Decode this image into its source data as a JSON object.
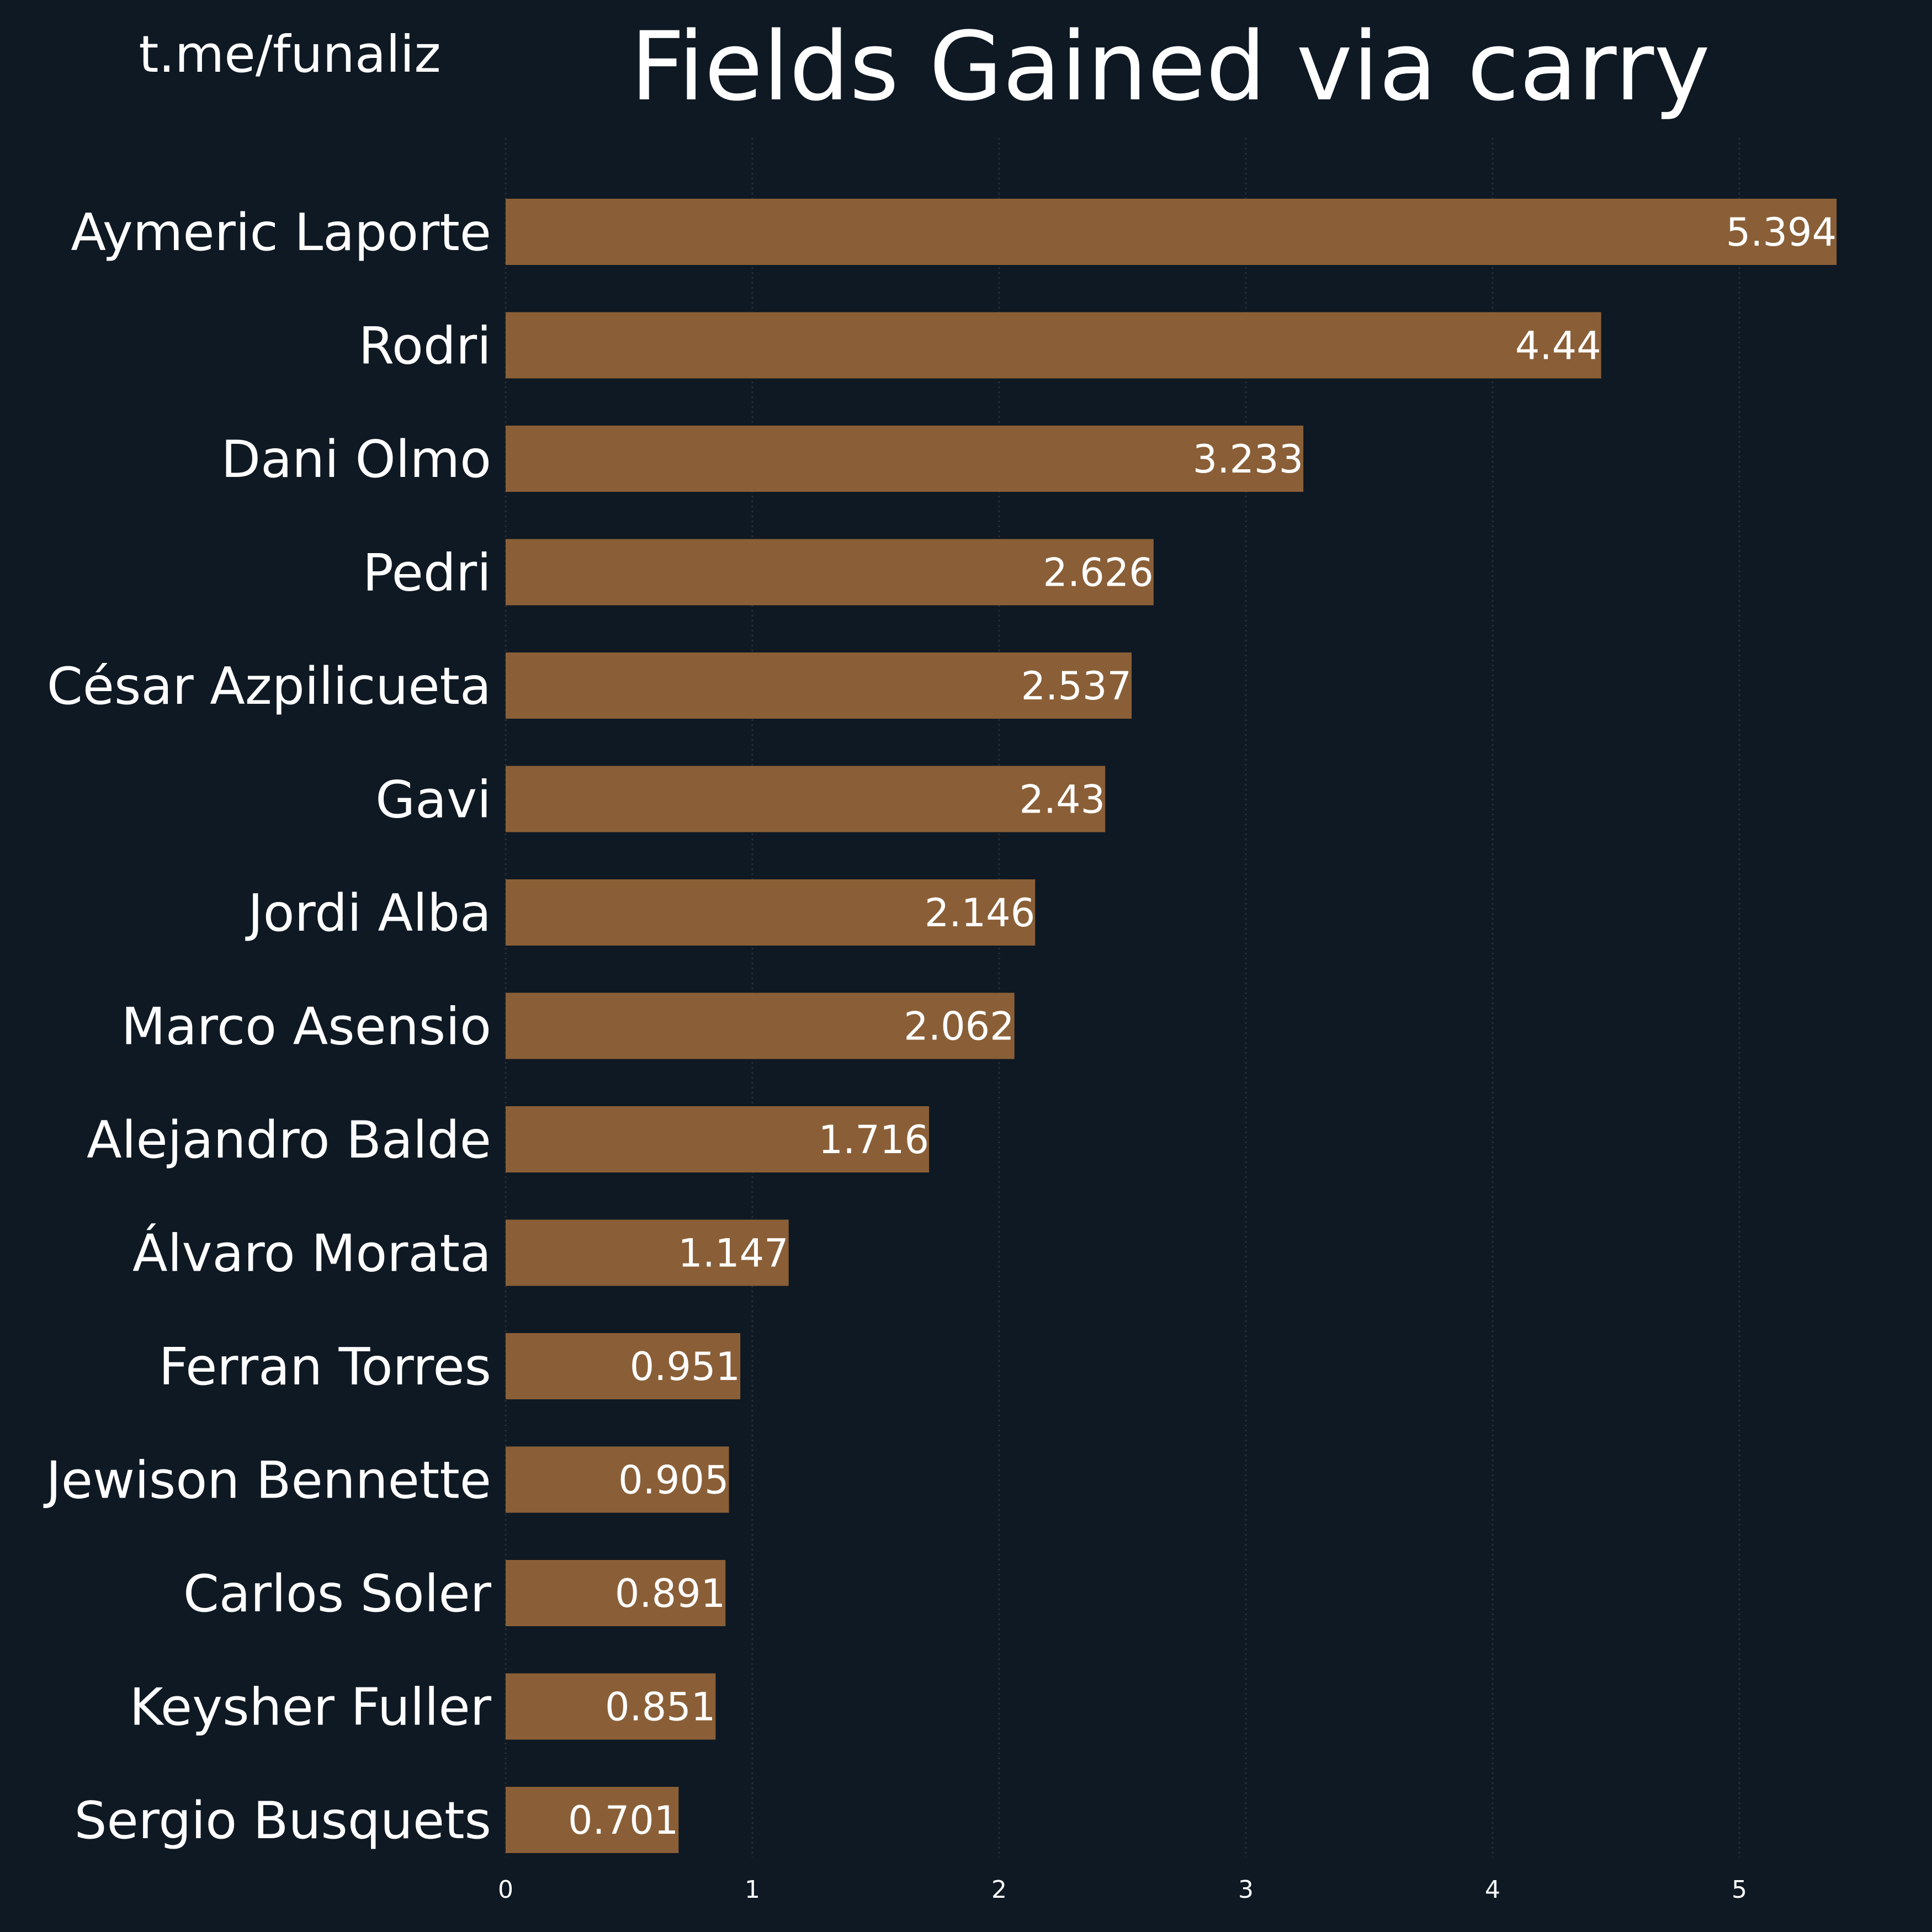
{
  "header": {
    "watermark": "t.me/funaliz",
    "title": "Fields Gained via carry"
  },
  "colors": {
    "background": "#0f1923",
    "bar": "#8a5f37",
    "text": "#ffffff",
    "grid": "#27303a"
  },
  "chart_data": {
    "type": "bar",
    "orientation": "horizontal",
    "title": "Fields Gained via carry",
    "xlabel": "",
    "ylabel": "",
    "xlim": [
      0,
      5.5
    ],
    "x_ticks": [
      0,
      1,
      2,
      3,
      4,
      5
    ],
    "grid": "vertical, dotted",
    "categories": [
      "Aymeric Laporte",
      "Rodri",
      "Dani Olmo",
      "Pedri",
      "César Azpilicueta",
      "Gavi",
      "Jordi Alba",
      "Marco Asensio",
      "Alejandro Balde",
      "Álvaro Morata",
      "Ferran Torres",
      "Jewison Bennette",
      "Carlos Soler",
      "Keysher Fuller",
      "Sergio Busquets"
    ],
    "values": [
      5.394,
      4.44,
      3.233,
      2.626,
      2.537,
      2.43,
      2.146,
      2.062,
      1.716,
      1.147,
      0.951,
      0.905,
      0.891,
      0.851,
      0.701
    ],
    "value_labels": [
      "5.394",
      "4.44",
      "3.233",
      "2.626",
      "2.537",
      "2.43",
      "2.146",
      "2.062",
      "1.716",
      "1.147",
      "0.951",
      "0.905",
      "0.891",
      "0.851",
      "0.701"
    ]
  }
}
